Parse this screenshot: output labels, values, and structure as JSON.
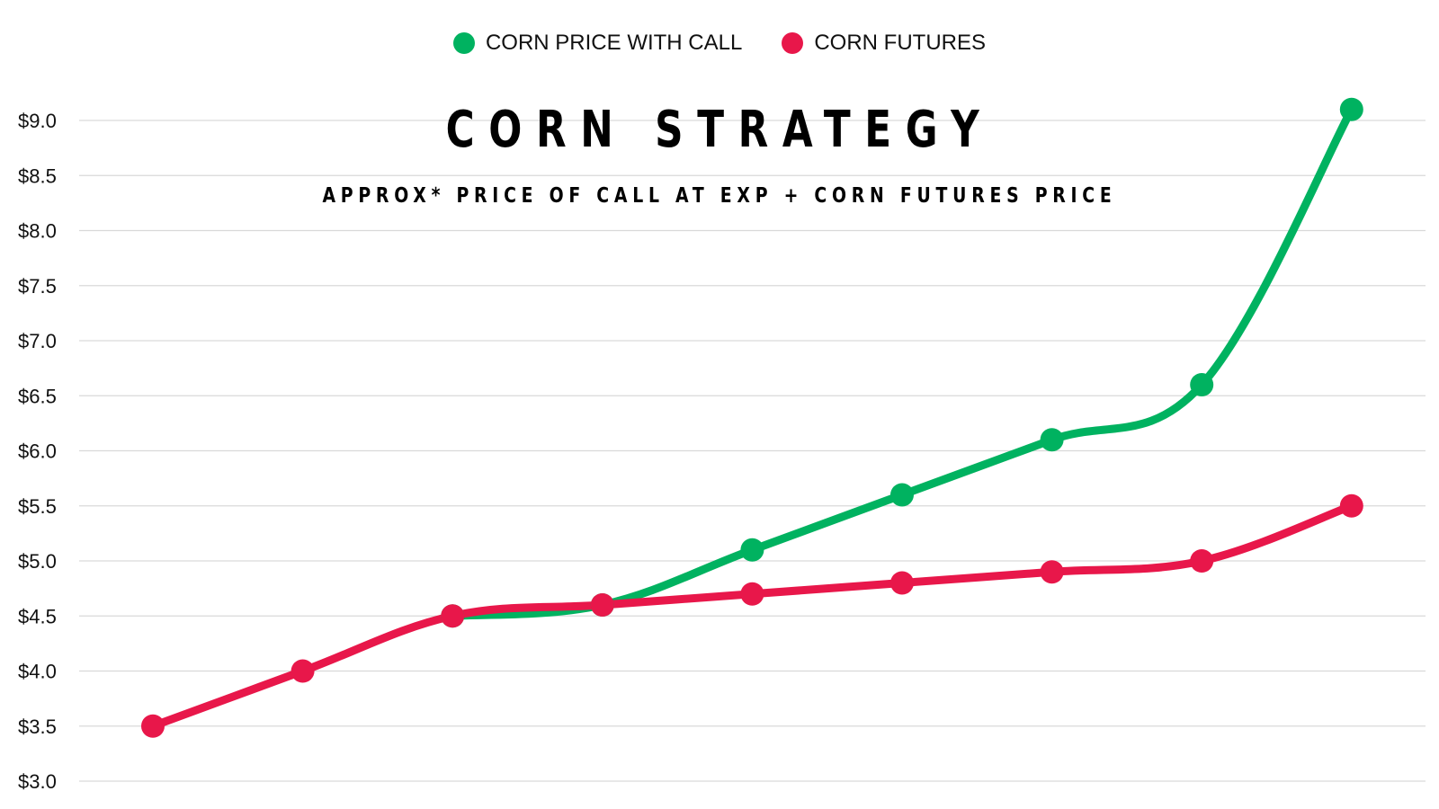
{
  "legend": [
    {
      "name": "CORN PRICE WITH CALL",
      "color": "#00b260"
    },
    {
      "name": "CORN FUTURES",
      "color": "#e8174a"
    }
  ],
  "chart_data": {
    "type": "line",
    "title": "CORN STRATEGY",
    "subtitle": "APPROX* PRICE OF CALL AT EXP + CORN FUTURES PRICE",
    "xlabel": "",
    "ylabel": "",
    "ylim": [
      3.0,
      9.0
    ],
    "yticks": [
      "$3.0",
      "$3.5",
      "$4.0",
      "$4.5",
      "$5.0",
      "$5.5",
      "$6.0",
      "$6.5",
      "$7.0",
      "$7.5",
      "$8.0",
      "$8.5",
      "$9.0"
    ],
    "ytick_values": [
      3.0,
      3.5,
      4.0,
      4.5,
      5.0,
      5.5,
      6.0,
      6.5,
      7.0,
      7.5,
      8.0,
      8.5,
      9.0
    ],
    "grid": true,
    "legend_position": "top-center",
    "series": [
      {
        "name": "CORN PRICE WITH CALL",
        "color": "#00b260",
        "values": [
          null,
          null,
          4.5,
          4.6,
          5.1,
          5.6,
          6.1,
          6.6,
          9.1
        ]
      },
      {
        "name": "CORN FUTURES",
        "color": "#e8174a",
        "values": [
          3.5,
          4.0,
          4.5,
          4.6,
          4.7,
          4.8,
          4.9,
          5.0,
          5.5
        ]
      }
    ]
  }
}
